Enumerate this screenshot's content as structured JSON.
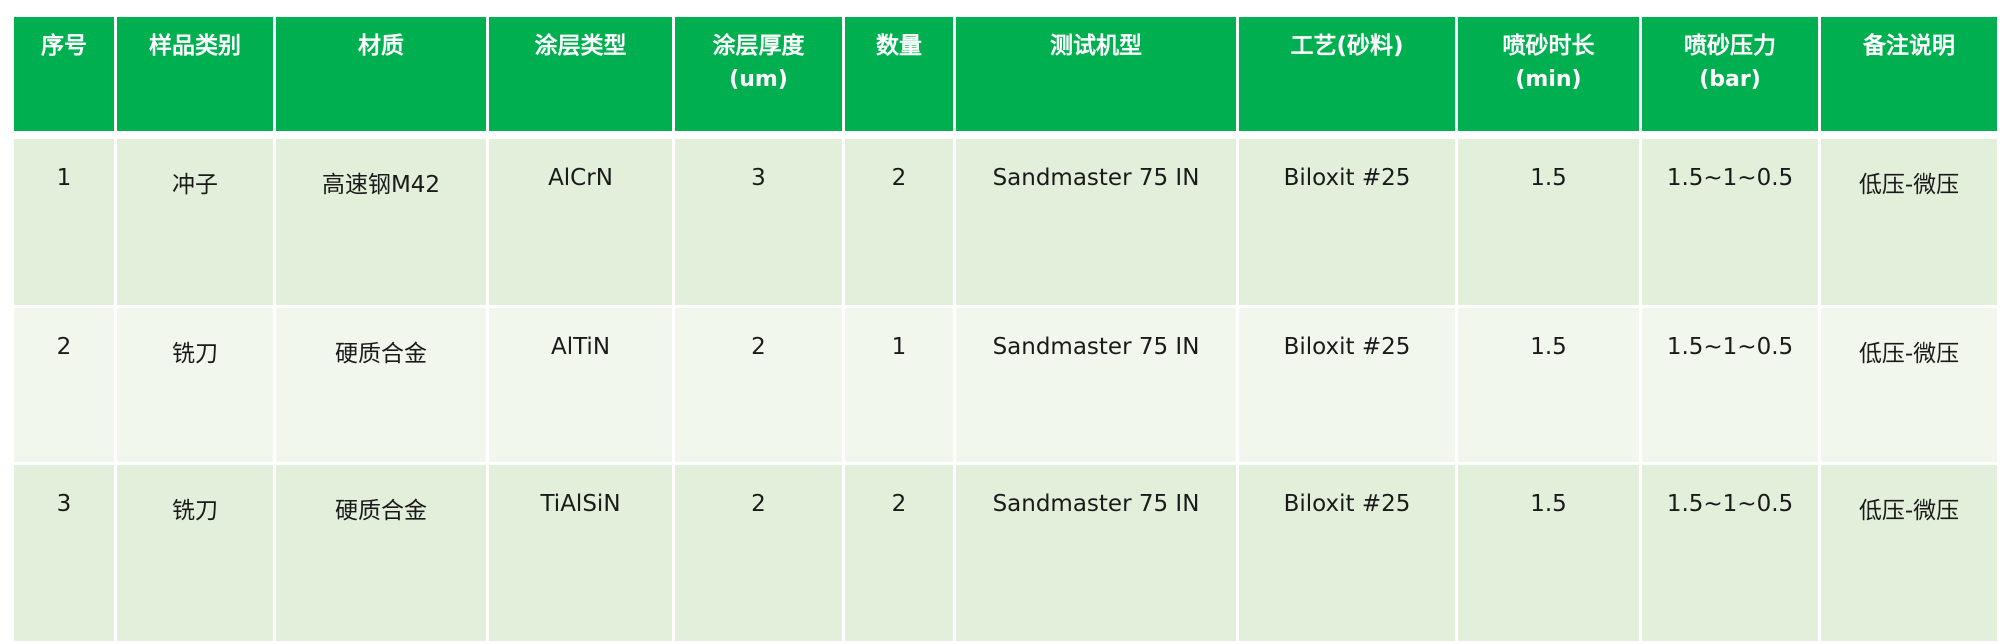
{
  "colors": {
    "header_bg": "#00b050",
    "row_odd_bg": "#e2efda",
    "row_even_bg": "#f2f7ee"
  },
  "table": {
    "headers": [
      {
        "label": "序号",
        "sub": ""
      },
      {
        "label": "样品类别",
        "sub": ""
      },
      {
        "label": "材质",
        "sub": ""
      },
      {
        "label": "涂层类型",
        "sub": ""
      },
      {
        "label": "涂层厚度",
        "sub": "(um)"
      },
      {
        "label": "数量",
        "sub": ""
      },
      {
        "label": "测试机型",
        "sub": ""
      },
      {
        "label": "工艺(砂料)",
        "sub": ""
      },
      {
        "label": "喷砂时长",
        "sub": "(min)"
      },
      {
        "label": "喷砂压力",
        "sub": "(bar)"
      },
      {
        "label": "备注说明",
        "sub": ""
      }
    ],
    "rows": [
      [
        "1",
        "冲子",
        "高速钢M42",
        "AlCrN",
        "3",
        "2",
        "Sandmaster 75 IN",
        "Biloxit #25",
        "1.5",
        "1.5~1~0.5",
        "低压-微压"
      ],
      [
        "2",
        "铣刀",
        "硬质合金",
        "AlTiN",
        "2",
        "1",
        "Sandmaster 75 IN",
        "Biloxit #25",
        "1.5",
        "1.5~1~0.5",
        "低压-微压"
      ],
      [
        "3",
        "铣刀",
        "硬质合金",
        "TiAlSiN",
        "2",
        "2",
        "Sandmaster 75 IN",
        "Biloxit #25",
        "1.5",
        "1.5~1~0.5",
        "低压-微压"
      ]
    ]
  }
}
